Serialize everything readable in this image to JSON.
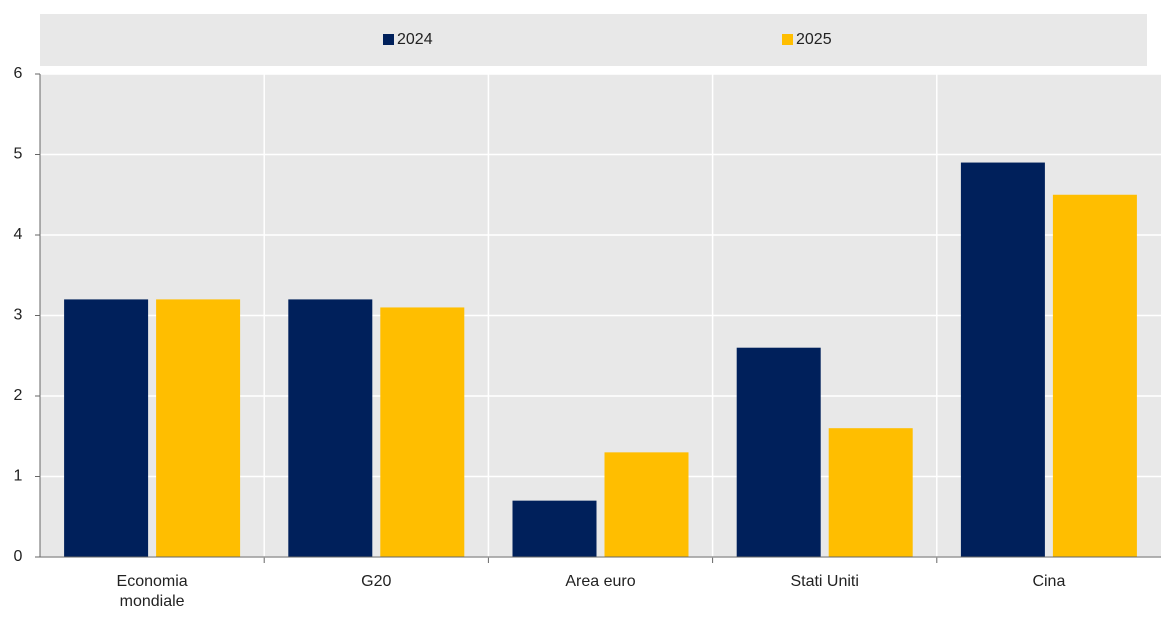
{
  "chart_data": {
    "type": "bar",
    "categories": [
      "Economia mondiale",
      "G20",
      "Area euro",
      "Stati Uniti",
      "Cina"
    ],
    "series": [
      {
        "name": "2024",
        "color": "#00205b",
        "values": [
          3.2,
          3.2,
          0.7,
          2.6,
          4.9
        ]
      },
      {
        "name": "2025",
        "color": "#ffbe00",
        "values": [
          3.2,
          3.1,
          1.3,
          1.6,
          4.5
        ]
      }
    ],
    "ylim": [
      0,
      6
    ],
    "yticks": [
      0,
      1,
      2,
      3,
      4,
      5,
      6
    ],
    "grid": true,
    "legend": "top"
  }
}
